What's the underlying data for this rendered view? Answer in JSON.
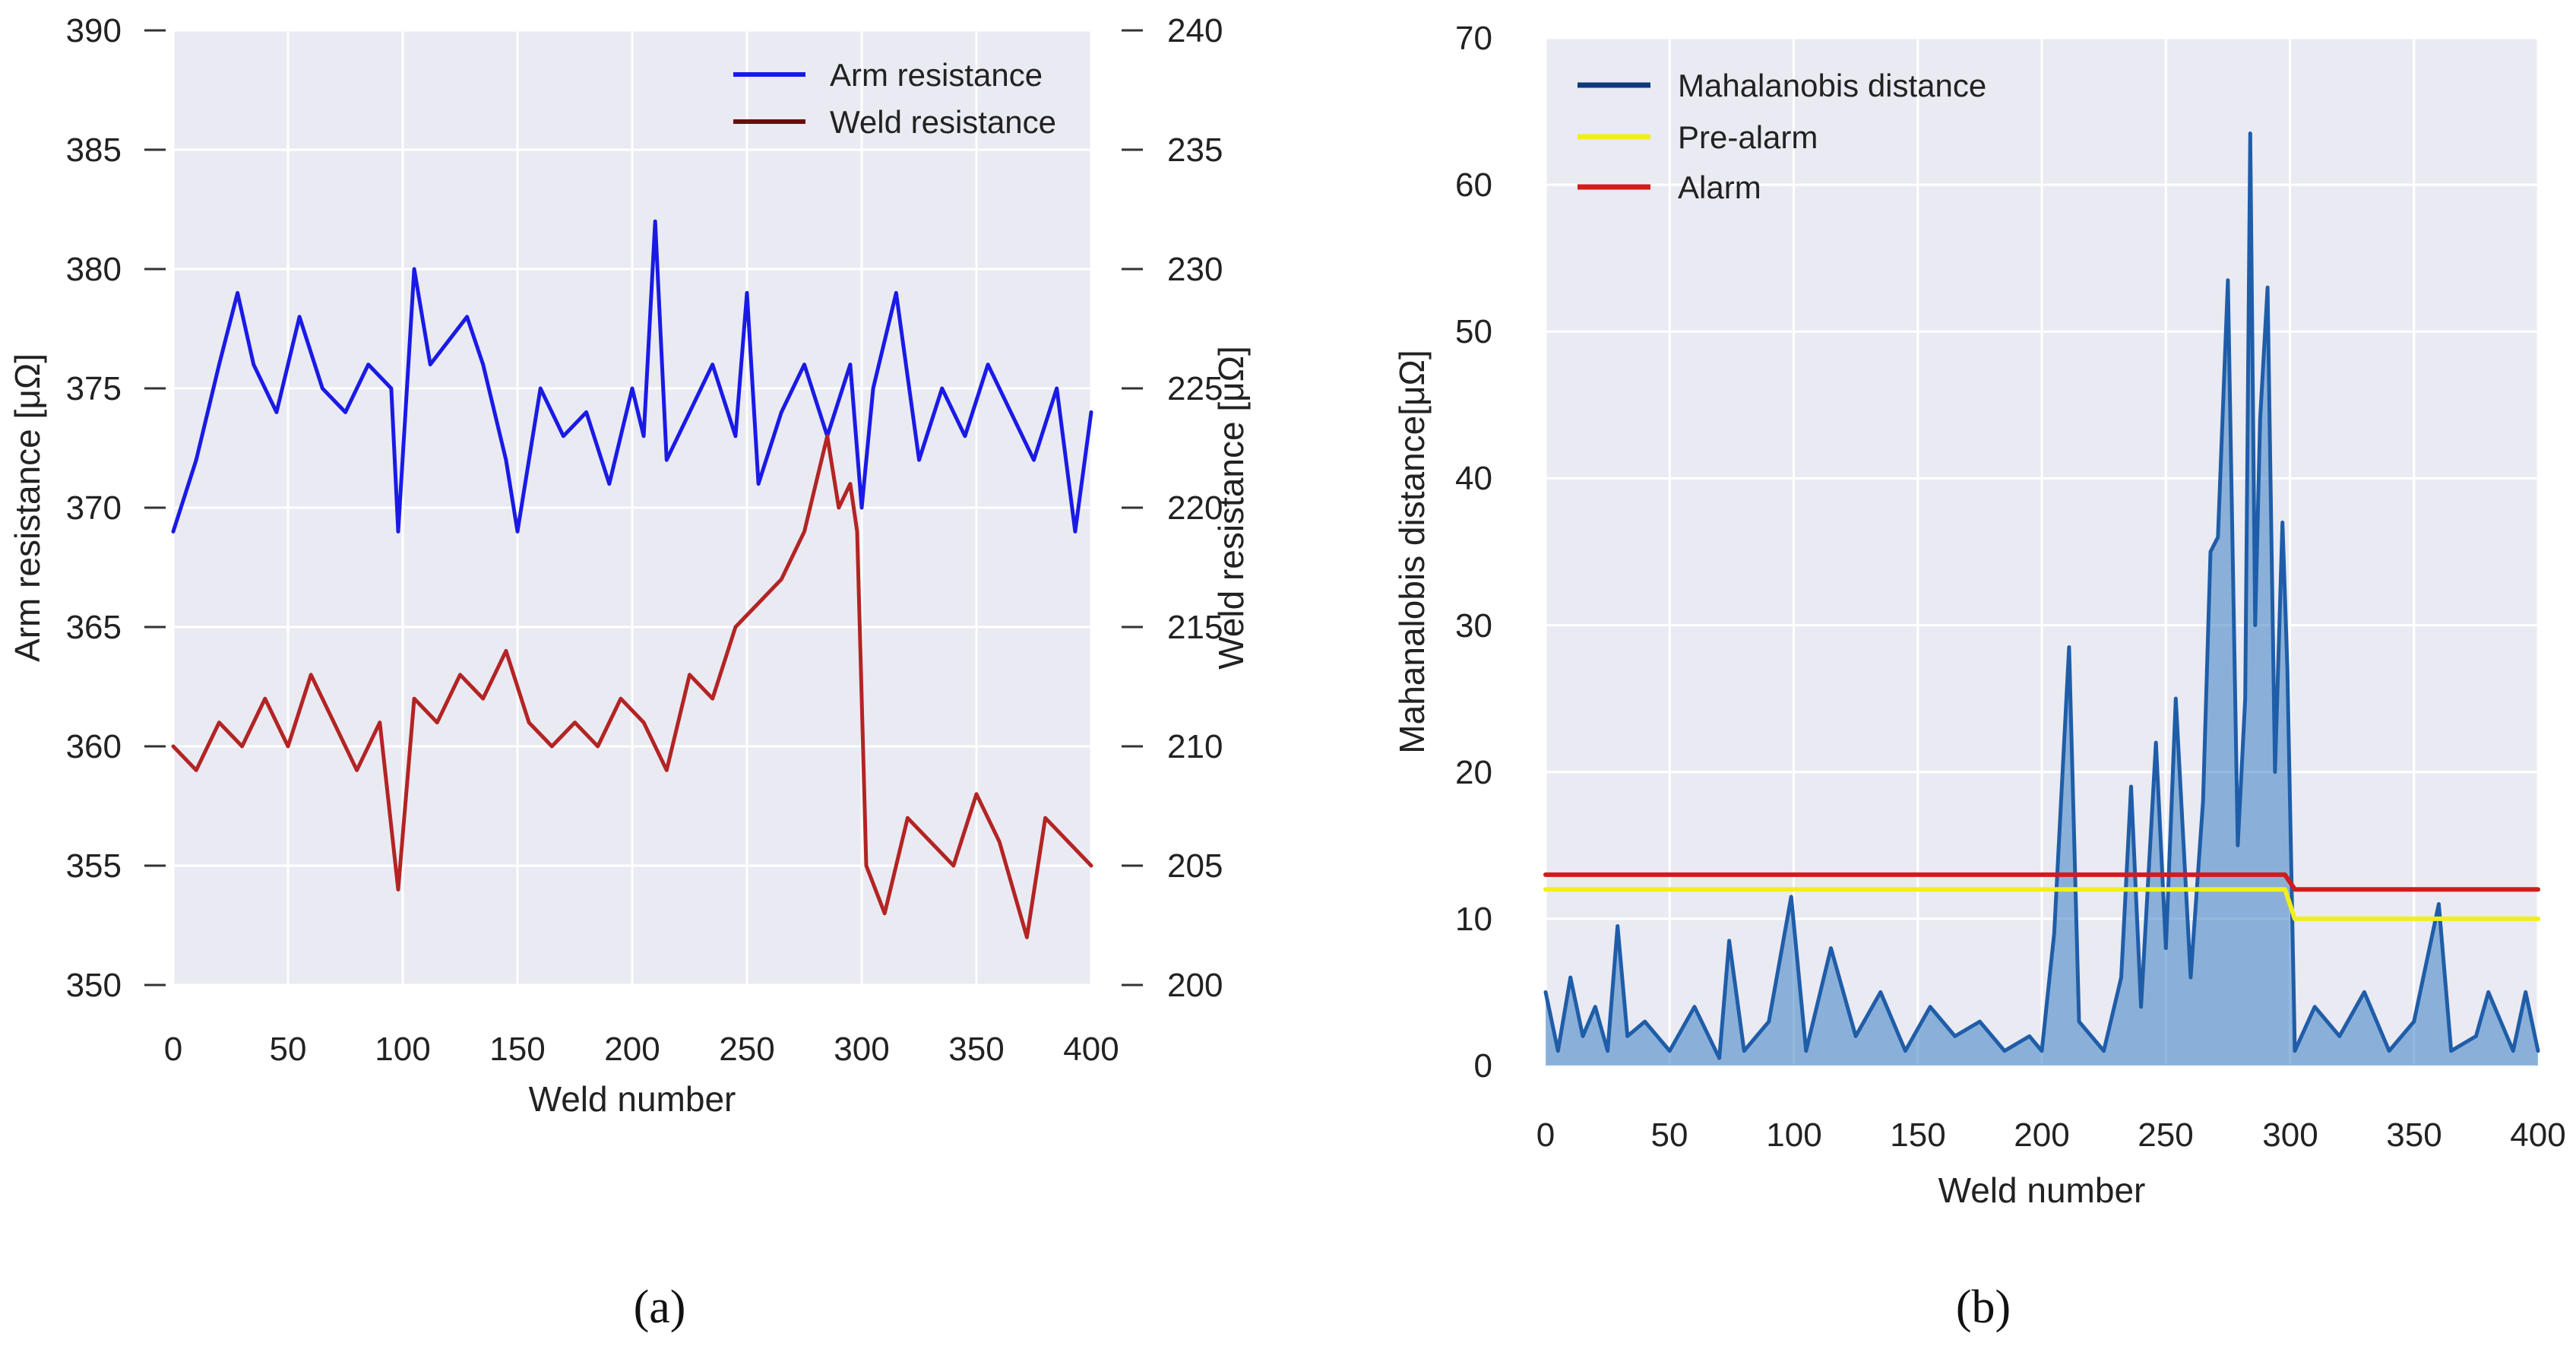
{
  "chart_data": [
    {
      "id": "a",
      "type": "line",
      "caption": "(a)",
      "xlabel": "Weld number",
      "ylabel": "Arm resistance [μΩ]",
      "ylabel_right": "Weld resistance [μΩ]",
      "xlim": [
        0,
        400
      ],
      "ylim": [
        350,
        390
      ],
      "ylim_right": [
        200,
        240
      ],
      "xticks": [
        "0",
        "50",
        "100",
        "150",
        "200",
        "250",
        "300",
        "350",
        "400"
      ],
      "yticks": [
        "350",
        "355",
        "360",
        "365",
        "370",
        "375",
        "380",
        "385",
        "390"
      ],
      "yticks_right": [
        "200",
        "205",
        "210",
        "215",
        "220",
        "225",
        "230",
        "235",
        "240"
      ],
      "grid": true,
      "legend_position": "top-right",
      "series": [
        {
          "name": "Arm resistance",
          "axis": "left",
          "color": "#1a1ae6",
          "x": [
            0,
            10,
            20,
            28,
            35,
            45,
            55,
            65,
            75,
            85,
            95,
            98,
            105,
            112,
            120,
            128,
            135,
            145,
            150,
            160,
            170,
            180,
            190,
            200,
            205,
            210,
            215,
            225,
            235,
            245,
            250,
            255,
            265,
            275,
            285,
            295,
            300,
            305,
            315,
            325,
            335,
            345,
            355,
            365,
            375,
            385,
            393,
            400
          ],
          "values": [
            369,
            372,
            376,
            379,
            376,
            374,
            378,
            375,
            374,
            376,
            375,
            369,
            380,
            376,
            377,
            378,
            376,
            372,
            369,
            375,
            373,
            374,
            371,
            375,
            373,
            382,
            372,
            374,
            376,
            373,
            379,
            371,
            374,
            376,
            373,
            376,
            370,
            375,
            379,
            372,
            375,
            373,
            376,
            374,
            372,
            375,
            369,
            374
          ]
        },
        {
          "name": "Weld resistance",
          "axis": "right",
          "color": "#b32424",
          "x": [
            0,
            10,
            20,
            30,
            40,
            50,
            60,
            70,
            80,
            90,
            98,
            105,
            115,
            125,
            135,
            145,
            155,
            165,
            175,
            185,
            195,
            205,
            215,
            225,
            235,
            245,
            255,
            265,
            275,
            280,
            285,
            290,
            295,
            298,
            302,
            310,
            320,
            330,
            340,
            350,
            360,
            372,
            380,
            390,
            400
          ],
          "values": [
            210,
            209,
            211,
            210,
            212,
            210,
            213,
            211,
            209,
            211,
            204,
            212,
            211,
            213,
            212,
            214,
            211,
            210,
            211,
            210,
            212,
            211,
            209,
            213,
            212,
            215,
            216,
            217,
            219,
            221,
            223,
            220,
            221,
            219,
            205,
            203,
            207,
            206,
            205,
            208,
            206,
            202,
            207,
            206,
            205
          ]
        }
      ]
    },
    {
      "id": "b",
      "type": "line",
      "caption": "(b)",
      "xlabel": "Weld number",
      "ylabel": "Mahanalobis distance[μΩ]",
      "xlim": [
        0,
        400
      ],
      "ylim": [
        0,
        70
      ],
      "xticks": [
        "0",
        "50",
        "100",
        "150",
        "200",
        "250",
        "300",
        "350",
        "400"
      ],
      "yticks": [
        "0",
        "10",
        "20",
        "30",
        "40",
        "50",
        "60",
        "70"
      ],
      "grid": true,
      "legend_position": "top-left",
      "series": [
        {
          "name": "Mahalanobis distance",
          "color": "#1f5da8",
          "x": [
            0,
            5,
            10,
            15,
            20,
            25,
            29,
            33,
            40,
            50,
            60,
            70,
            74,
            80,
            90,
            99,
            105,
            115,
            125,
            135,
            145,
            155,
            165,
            175,
            185,
            195,
            200,
            205,
            211,
            215,
            225,
            232,
            236,
            240,
            246,
            250,
            254,
            260,
            265,
            268,
            271,
            275,
            279,
            282,
            284,
            286,
            288,
            291,
            294,
            297,
            299,
            302,
            310,
            320,
            330,
            340,
            350,
            360,
            365,
            375,
            380,
            390,
            395,
            400
          ],
          "values": [
            5,
            1,
            6,
            2,
            4,
            1,
            9.5,
            2,
            3,
            1,
            4,
            0.5,
            8.5,
            1,
            3,
            11.5,
            1,
            8,
            2,
            5,
            1,
            4,
            2,
            3,
            1,
            2,
            1,
            9,
            28.5,
            3,
            1,
            6,
            19,
            4,
            22,
            8,
            25,
            6,
            18,
            35,
            36,
            53.5,
            15,
            25,
            63.5,
            30,
            44,
            53,
            20,
            37,
            27,
            1,
            4,
            2,
            5,
            1,
            3,
            11,
            1,
            2,
            5,
            1,
            5,
            1
          ]
        },
        {
          "name": "Pre-alarm",
          "color": "#f2ee1d",
          "x": [
            0,
            298,
            302,
            400
          ],
          "values": [
            12,
            12,
            10,
            10
          ]
        },
        {
          "name": "Alarm",
          "color": "#d01c1c",
          "x": [
            0,
            298,
            302,
            400
          ],
          "values": [
            13,
            13,
            12,
            12
          ]
        }
      ]
    }
  ]
}
